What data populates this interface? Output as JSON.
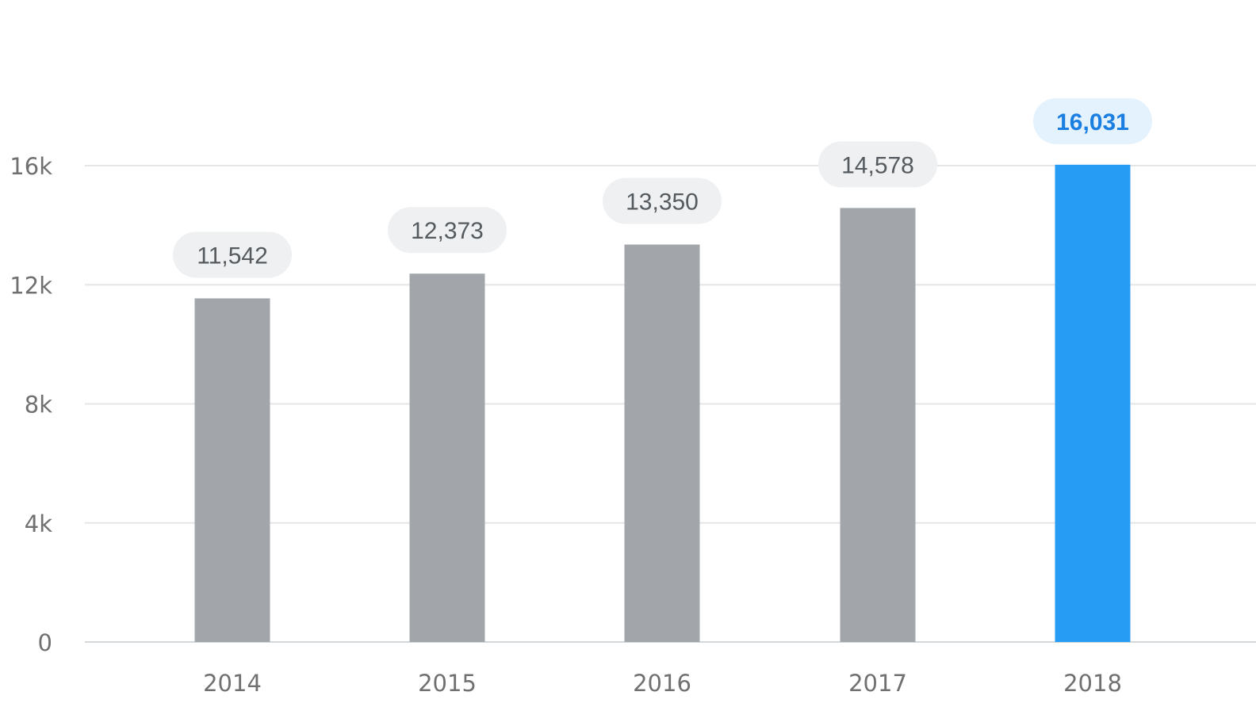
{
  "chart_data": {
    "type": "bar",
    "categories": [
      "2014",
      "2015",
      "2016",
      "2017",
      "2018"
    ],
    "values": [
      11542,
      12373,
      13350,
      14578,
      16031
    ],
    "value_labels": [
      "11,542",
      "12,373",
      "13,350",
      "14,578",
      "16,031"
    ],
    "highlight_index": 4,
    "ylim": [
      0,
      16000
    ],
    "yticks": [
      0,
      4000,
      8000,
      12000,
      16000
    ],
    "ytick_labels": [
      "0",
      "4k",
      "8k",
      "12k",
      "16k"
    ],
    "grid": true,
    "title": "",
    "xlabel": "",
    "ylabel": "",
    "colors": {
      "bar": "#a2a6aa",
      "highlight_bar": "#279cf5",
      "label_bg": "#eef0f2",
      "highlight_label_bg": "#e4f2fd",
      "label_text": "#555a5e",
      "highlight_label_text": "#1a7fe0",
      "grid": "#e3e5e7",
      "axis_text": "#707070"
    }
  }
}
